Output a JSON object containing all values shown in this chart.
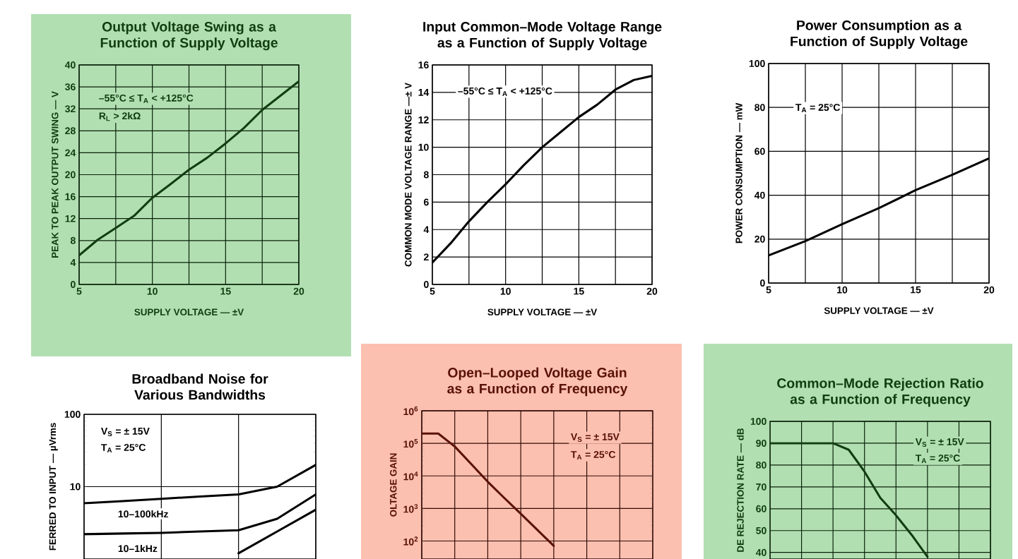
{
  "chart_data": [
    {
      "type": "line",
      "title": "Output Voltage Swing as a Function of Supply Voltage",
      "xlabel": "SUPPLY VOLTAGE — ±V",
      "ylabel": "PEAK TO PEAK OUTPUT SWING — V",
      "annotations": [
        "–55°C ≤ T$_{A}$ < +125°C",
        "R$_{L}$ > 2kΩ"
      ],
      "x": [
        5,
        6.25,
        7.5,
        8.75,
        10,
        11.25,
        12.5,
        13.75,
        15,
        16.25,
        17.5,
        18.75,
        20
      ],
      "series": [
        {
          "color": "#123d12",
          "values": [
            5.3,
            8.1,
            10.3,
            12.5,
            15.8,
            18.3,
            20.9,
            23.1,
            25.7,
            28.5,
            31.8,
            34.4,
            37.0
          ]
        }
      ],
      "xlim": [
        5,
        20
      ],
      "ylim": [
        0,
        40
      ],
      "xticks": [
        5,
        {
          "value": 7.5,
          "label": null
        },
        10,
        {
          "value": 12.5,
          "label": null
        },
        15,
        {
          "value": 17.5,
          "label": null
        },
        20
      ],
      "yticks": [
        0,
        4,
        8,
        12,
        16,
        20,
        24,
        28,
        32,
        36,
        40
      ],
      "grid": true
    },
    {
      "type": "line",
      "title": "Input Common–Mode Voltage Range as a Function of Supply Voltage",
      "xlabel": "SUPPLY VOLTAGE — ±V",
      "ylabel": "COMMON MODE VOLTAGE RANGE —± V",
      "annotations": [
        "–55°C ≤ T$_{A}$ < +125°C"
      ],
      "x": [
        5,
        6.25,
        7.5,
        8.75,
        10,
        11.25,
        12.5,
        13.75,
        15,
        16.25,
        17.5,
        18.75,
        20
      ],
      "series": [
        {
          "color": "#000000",
          "values": [
            1.6,
            3.0,
            4.6,
            6.0,
            7.3,
            8.7,
            10.0,
            11.1,
            12.2,
            13.1,
            14.2,
            14.9,
            15.2
          ]
        }
      ],
      "xlim": [
        5,
        20
      ],
      "ylim": [
        0,
        16
      ],
      "xticks": [
        5,
        {
          "value": 7.5,
          "label": null
        },
        10,
        {
          "value": 12.5,
          "label": null
        },
        15,
        {
          "value": 17.5,
          "label": null
        },
        20
      ],
      "yticks": [
        0,
        2,
        4,
        6,
        8,
        10,
        12,
        14,
        16
      ],
      "grid": true
    },
    {
      "type": "line",
      "title": "Power Consumption as a Function of Supply Voltage",
      "xlabel": "SUPPLY VOLTAGE — ±V",
      "ylabel": "POWER CONSUMPTION — mW",
      "annotations": [
        "T$_{A}$ = 25°C"
      ],
      "x": [
        5,
        7.5,
        10,
        12.5,
        15,
        17.5,
        20
      ],
      "series": [
        {
          "color": "#000000",
          "values": [
            12.6,
            19.1,
            26.8,
            34.1,
            42.3,
            49.3,
            56.8
          ]
        }
      ],
      "xlim": [
        5,
        20
      ],
      "ylim": [
        0,
        100
      ],
      "xticks": [
        5,
        {
          "value": 7.5,
          "label": null
        },
        10,
        {
          "value": 12.5,
          "label": null
        },
        15,
        {
          "value": 17.5,
          "label": null
        },
        20
      ],
      "yticks": [
        0,
        20,
        40,
        60,
        80,
        100
      ],
      "grid": true
    },
    {
      "type": "line",
      "title": "Broadband Noise for Various Bandwidths",
      "ylabel": "FERRED TO INPUT — µVrms",
      "annotations": [
        "V$_{S}$ = ± 15V",
        "T$_{A}$ = 25°C",
        "10–100kHz",
        "10–1kHz"
      ],
      "categories": [
        null,
        null,
        null,
        null,
        null,
        null,
        null
      ],
      "series": [
        {
          "color": "#000000",
          "values": [
            5.9,
            6.3,
            6.8,
            7.3,
            7.8,
            10,
            20
          ]
        },
        {
          "color": "#000000",
          "values": [
            2.2,
            2.25,
            2.3,
            2.4,
            2.5,
            3.6,
            7.8
          ]
        },
        {
          "color": "#000000",
          "values": [
            null,
            null,
            null,
            null,
            1.2,
            2.4,
            4.8
          ]
        }
      ],
      "ylim": [
        1,
        100
      ],
      "yticks": [
        10,
        100
      ],
      "log": "y",
      "tick_labels": "y",
      "grid": true
    },
    {
      "type": "line",
      "title": "Open–Looped Voltage Gain as a Function of Frequency",
      "ylabel": "OLTAGE GAIN",
      "annotations": [
        "V$_{S}$ = ± 15V",
        "T$_{A}$ = 25°C"
      ],
      "categories": [
        null,
        null,
        null,
        null,
        null,
        null,
        null,
        null,
        null,
        null,
        null,
        null,
        null,
        null,
        null
      ],
      "series": [
        {
          "color": "#5a1208",
          "values": [
            200000,
            200000,
            80000,
            23000,
            6600,
            2100,
            690,
            220,
            71,
            null,
            null,
            null,
            null,
            null,
            null
          ]
        }
      ],
      "ylim": [
        28,
        1000000
      ],
      "yticks": [
        {
          "value": 100,
          "label": "10$^{2}$"
        },
        {
          "value": 1000,
          "label": "10$^{3}$"
        },
        {
          "value": 10000,
          "label": "10$^{4}$"
        },
        {
          "value": 100000,
          "label": "10$^{5}$"
        },
        {
          "value": 1000000,
          "label": "10$^{6}$"
        }
      ],
      "log": "y",
      "tick_labels": "y",
      "grid": true
    },
    {
      "type": "line",
      "title": "Common–Mode Rejection Ratio as a Function of Frequency",
      "ylabel": "DE REJECTION RATE — dB",
      "annotations": [
        "V$_{S}$ = ± 15V",
        "T$_{A}$ = 25°C"
      ],
      "categories": [
        null,
        null,
        null,
        null,
        null,
        null,
        null,
        null,
        null,
        null,
        null,
        null,
        null,
        null,
        null
      ],
      "series": [
        {
          "color": "#123d12",
          "values": [
            90,
            90,
            90,
            90,
            90,
            87,
            77,
            65,
            57,
            48,
            38,
            null,
            null,
            null,
            null
          ]
        }
      ],
      "ylim": [
        37,
        100
      ],
      "yticks": [
        40,
        50,
        60,
        70,
        80,
        90,
        100
      ],
      "tick_labels": "y",
      "grid": true
    }
  ]
}
